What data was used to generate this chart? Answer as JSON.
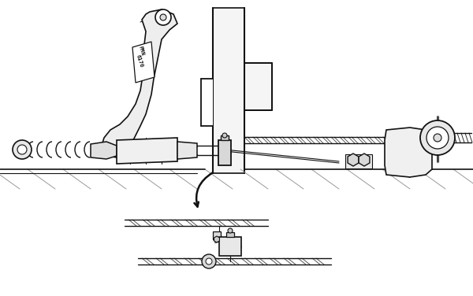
{
  "bg_color": "#ffffff",
  "line_color": "#111111",
  "fig_width": 6.0,
  "fig_height": 3.76,
  "dpi": 100
}
